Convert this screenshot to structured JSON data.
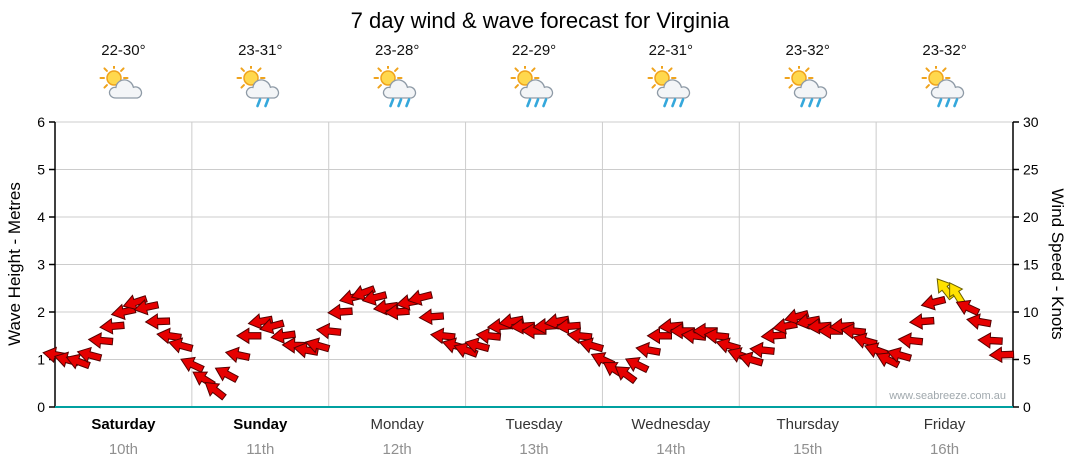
{
  "title": "7 day wind & wave forecast for Virginia",
  "watermark": "www.seabreeze.com.au",
  "axes": {
    "left_label": "Wave Height - Metres",
    "right_label": "Wind Speed - Knots",
    "left_ticks": [
      0,
      1,
      2,
      3,
      4,
      5,
      6
    ],
    "right_ticks": [
      0,
      5,
      10,
      15,
      20,
      25,
      30
    ]
  },
  "days": [
    {
      "name": "Saturday",
      "date": "10th",
      "temp": "22-30°",
      "icon": "partly-cloudy",
      "bold": true
    },
    {
      "name": "Sunday",
      "date": "11th",
      "temp": "23-31°",
      "icon": "light-showers",
      "bold": true
    },
    {
      "name": "Monday",
      "date": "12th",
      "temp": "23-28°",
      "icon": "showers",
      "bold": false
    },
    {
      "name": "Tuesday",
      "date": "13th",
      "temp": "22-29°",
      "icon": "showers",
      "bold": false
    },
    {
      "name": "Wednesday",
      "date": "14th",
      "temp": "22-31°",
      "icon": "showers",
      "bold": false
    },
    {
      "name": "Thursday",
      "date": "15th",
      "temp": "23-32°",
      "icon": "showers",
      "bold": false
    },
    {
      "name": "Friday",
      "date": "16th",
      "temp": "23-32°",
      "icon": "showers",
      "bold": false
    }
  ],
  "colors": {
    "arrow": "#E60000",
    "arrow_outline": "#550000",
    "arrow_strong": "#FFE100",
    "arrow_strong_outline": "#6B6000",
    "baseline": "#00A0A0",
    "grid": "#CCCCCC",
    "axis": "#000000",
    "date_text": "#909090",
    "watermark_text": "#A0A8AD"
  },
  "chart_data": {
    "type": "line",
    "title": "7 day wind & wave forecast for Virginia",
    "marker": "wind-direction-arrow",
    "grid": true,
    "x_unit": "hours from Saturday 00:00",
    "x_categories": [
      "Saturday 10th",
      "Sunday 11th",
      "Monday 12th",
      "Tuesday 13th",
      "Wednesday 14th",
      "Thursday 15th",
      "Friday 16th"
    ],
    "y_left": {
      "label": "Wave Height - Metres",
      "range": [
        0,
        6
      ],
      "ticks": [
        0,
        1,
        2,
        3,
        4,
        5,
        6
      ]
    },
    "y_right": {
      "label": "Wind Speed - Knots",
      "range": [
        0,
        30
      ],
      "ticks": [
        0,
        5,
        10,
        15,
        20,
        25,
        30
      ]
    },
    "x": [
      0,
      2,
      4,
      6,
      8,
      10,
      12,
      14,
      16,
      18,
      20,
      22,
      24,
      26,
      28,
      30,
      32,
      34,
      36,
      38,
      40,
      42,
      44,
      46,
      48,
      50,
      52,
      54,
      56,
      58,
      60,
      62,
      64,
      66,
      68,
      70,
      72,
      74,
      76,
      78,
      80,
      82,
      84,
      86,
      88,
      90,
      92,
      94,
      96,
      98,
      100,
      102,
      104,
      106,
      108,
      110,
      112,
      114,
      116,
      118,
      120,
      122,
      124,
      126,
      128,
      130,
      132,
      134,
      136,
      138,
      140,
      142,
      144,
      146,
      148,
      150,
      152,
      154,
      156,
      158,
      160,
      162,
      164,
      166
    ],
    "series": [
      {
        "name": "Wind speed (knots)",
        "values": [
          5.5,
          5.0,
          4.8,
          5.5,
          7.0,
          8.5,
          10.0,
          11.0,
          10.5,
          9.0,
          7.5,
          6.5,
          4.5,
          3.0,
          1.8,
          3.5,
          5.5,
          7.5,
          9.0,
          8.5,
          7.5,
          6.5,
          6.0,
          6.5,
          8.0,
          10.0,
          11.5,
          12.0,
          11.5,
          10.5,
          10.0,
          11.0,
          11.5,
          9.5,
          7.5,
          6.5,
          6.0,
          6.5,
          7.5,
          8.5,
          9.0,
          8.5,
          8.0,
          8.5,
          9.0,
          8.5,
          7.5,
          6.5,
          5.0,
          4.0,
          3.5,
          4.5,
          6.0,
          7.5,
          8.5,
          8.0,
          7.5,
          8.0,
          7.5,
          6.5,
          5.5,
          5.0,
          6.0,
          7.5,
          8.5,
          9.5,
          9.0,
          8.5,
          8.0,
          8.5,
          8.0,
          7.0,
          6.0,
          5.0,
          5.5,
          7.0,
          9.0,
          11.0,
          12.5,
          12.0,
          10.5,
          9.0,
          7.0,
          5.5
        ]
      }
    ],
    "point_dir_deg": [
      190,
      195,
      200,
      195,
      185,
      175,
      168,
      162,
      168,
      178,
      188,
      195,
      205,
      212,
      218,
      208,
      192,
      180,
      170,
      165,
      172,
      182,
      190,
      196,
      186,
      176,
      166,
      160,
      166,
      172,
      176,
      170,
      166,
      176,
      186,
      196,
      200,
      195,
      186,
      176,
      170,
      176,
      180,
      176,
      170,
      176,
      186,
      196,
      205,
      212,
      216,
      206,
      190,
      180,
      175,
      180,
      186,
      180,
      186,
      196,
      200,
      196,
      186,
      176,
      170,
      165,
      170,
      176,
      180,
      176,
      186,
      196,
      200,
      206,
      196,
      186,
      176,
      166,
      232,
      238,
      205,
      190,
      183,
      178
    ],
    "strong_indices": [
      78,
      79
    ]
  }
}
